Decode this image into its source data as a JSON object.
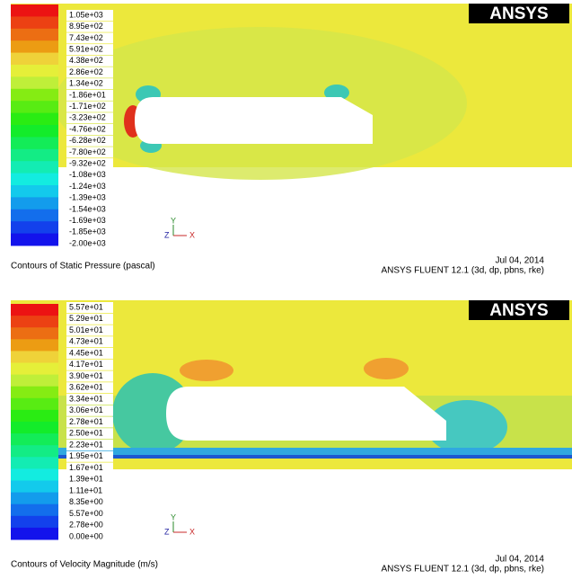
{
  "panels": [
    {
      "legend_labels": [
        "1.05e+03",
        "8.95e+02",
        "7.43e+02",
        "5.91e+02",
        "4.38e+02",
        "2.86e+02",
        "1.34e+02",
        "-1.86e+01",
        "-1.71e+02",
        "-3.23e+02",
        "-4.76e+02",
        "-6.28e+02",
        "-7.80e+02",
        "-9.32e+02",
        "-1.08e+03",
        "-1.24e+03",
        "-1.39e+03",
        "-1.54e+03",
        "-1.69e+03",
        "-1.85e+03",
        "-2.00e+03"
      ],
      "logo": "ANSYS",
      "axes": [
        "Y",
        "Z",
        "X"
      ],
      "caption": "Contours of Static Pressure (pascal)",
      "date": "Jul 04, 2014",
      "software": "ANSYS FLUENT 12.1 (3d, dp, pbns, rke)"
    },
    {
      "legend_labels": [
        "5.57e+01",
        "5.29e+01",
        "5.01e+01",
        "4.73e+01",
        "4.45e+01",
        "4.17e+01",
        "3.90e+01",
        "3.62e+01",
        "3.34e+01",
        "3.06e+01",
        "2.78e+01",
        "2.50e+01",
        "2.23e+01",
        "1.95e+01",
        "1.67e+01",
        "1.39e+01",
        "1.11e+01",
        "8.35e+00",
        "5.57e+00",
        "2.78e+00",
        "0.00e+00"
      ],
      "logo": "ANSYS",
      "axes": [
        "Y",
        "Z",
        "X"
      ],
      "caption": "Contours of Velocity Magnitude (m/s)",
      "date": "Jul 04, 2014",
      "software": "ANSYS FLUENT 12.1 (3d, dp, pbns, rke)"
    }
  ]
}
